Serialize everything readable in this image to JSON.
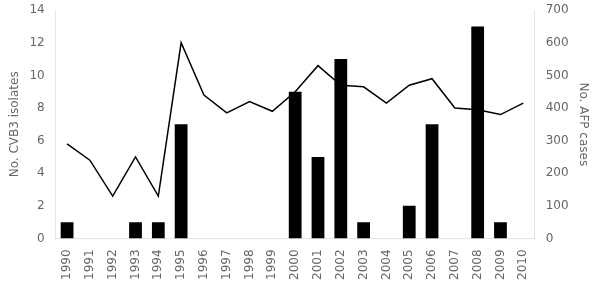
{
  "chart_data": {
    "type": "bar",
    "categories": [
      "1990",
      "1991",
      "1992",
      "1993",
      "1994",
      "1995",
      "1996",
      "1997",
      "1998",
      "1999",
      "2000",
      "2001",
      "2002",
      "2003",
      "2004",
      "2005",
      "2006",
      "2007",
      "2008",
      "2009",
      "2010"
    ],
    "series": [
      {
        "type": "bar",
        "color": "#000000",
        "values": [
          1,
          0,
          0,
          1,
          1,
          7,
          0,
          0,
          0,
          0,
          9,
          5,
          11,
          1,
          0,
          2,
          7,
          0,
          13,
          1,
          0
        ]
      },
      {
        "type": "line",
        "color": "#000000",
        "axis": "y2",
        "values": [
          290,
          240,
          130,
          250,
          130,
          600,
          440,
          385,
          420,
          390,
          450,
          530,
          470,
          465,
          415,
          470,
          490,
          400,
          395,
          380,
          415
        ]
      }
    ],
    "ylabel": "No. CVB3 isolates",
    "y2label": "No. AFP cases",
    "ylim": [
      0,
      14
    ],
    "yticks": [
      0,
      2,
      4,
      6,
      8,
      10,
      12,
      14
    ],
    "y2lim": [
      0,
      700
    ],
    "y2ticks": [
      0,
      100,
      200,
      300,
      400,
      500,
      600,
      700
    ],
    "grid": false
  }
}
